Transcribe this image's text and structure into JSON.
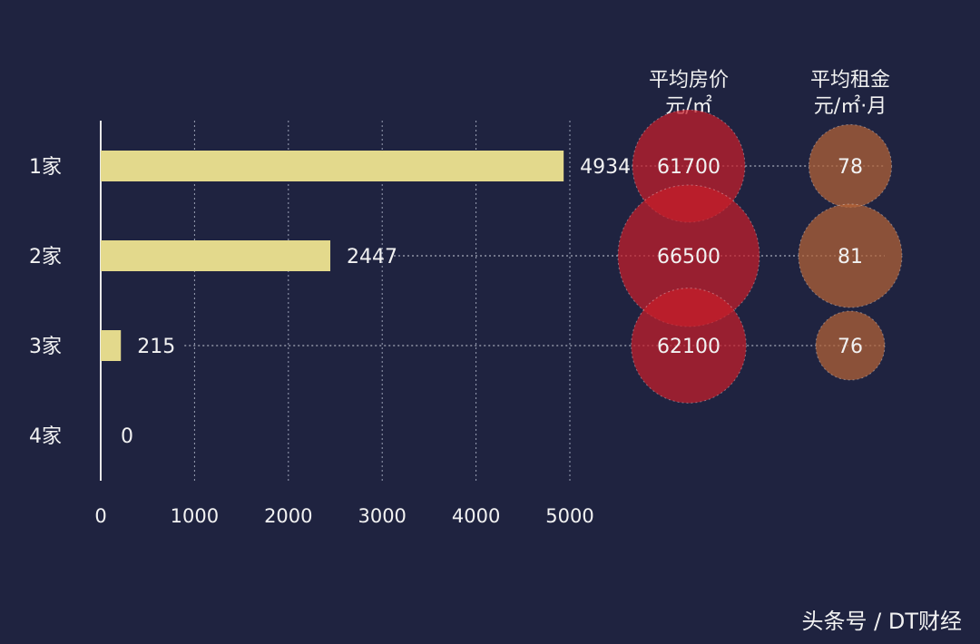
{
  "chart_data": {
    "type": "bar",
    "orientation": "horizontal",
    "categories": [
      "1家",
      "2家",
      "3家",
      "4家"
    ],
    "values": [
      4934,
      2447,
      215,
      0
    ],
    "xlim": [
      0,
      5000
    ],
    "xticks": [
      0,
      1000,
      2000,
      3000,
      4000,
      5000
    ],
    "grid": true,
    "bubble_columns": [
      {
        "header_line1": "平均房价",
        "header_line2": "元/㎡",
        "values": [
          61700,
          66500,
          62100
        ],
        "color": "#c81e2a"
      },
      {
        "header_line1": "平均租金",
        "header_line2": "元/㎡·月",
        "values": [
          78,
          81,
          76
        ],
        "color": "#b56436"
      }
    ],
    "colors": {
      "background": "#1f2340",
      "bar": "#e3d98c",
      "text": "#f2f2f2",
      "grid": "#9aa0b4"
    }
  },
  "watermark": "头条号 / DT财经"
}
